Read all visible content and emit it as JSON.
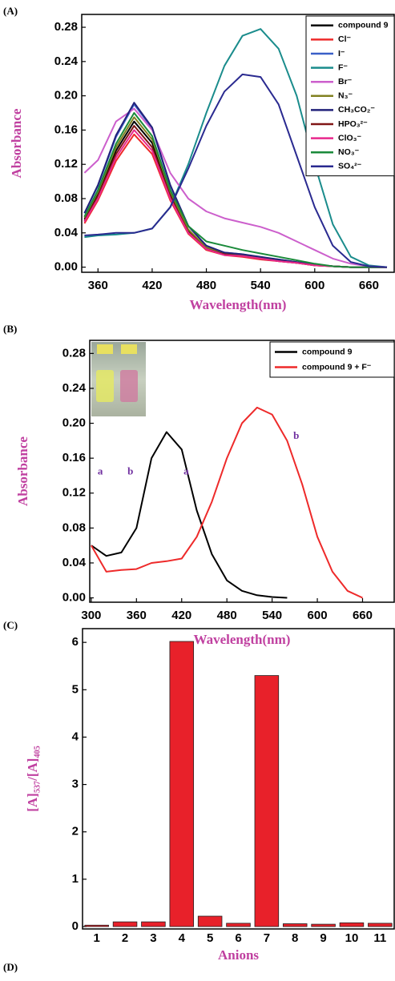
{
  "chart_data": [
    {
      "type": "line",
      "panel_label": "(A)",
      "x_label": "Wavelength(nm)",
      "y_label": "Absorbance",
      "xlim": [
        342,
        688
      ],
      "ylim": [
        -0.006,
        0.295
      ],
      "xticks": [
        360,
        420,
        480,
        540,
        600,
        660
      ],
      "yticks": [
        {
          "value": 0,
          "label": "0.00"
        },
        {
          "value": 0.04,
          "label": "0.04"
        },
        {
          "value": 0.08,
          "label": "0.08"
        },
        {
          "value": 0.12,
          "label": "0.12"
        },
        {
          "value": 0.16,
          "label": "0.16"
        },
        {
          "value": 0.2,
          "label": "0.20"
        },
        {
          "value": 0.24,
          "label": "0.24"
        },
        {
          "value": 0.28,
          "label": "0.28"
        }
      ],
      "legend": "upper right",
      "x": [
        345,
        360,
        380,
        400,
        420,
        440,
        460,
        480,
        500,
        520,
        540,
        560,
        580,
        600,
        620,
        640,
        660,
        680
      ],
      "series": [
        {
          "name": "compound 9",
          "color": "#000000",
          "values": [
            0.056,
            0.085,
            0.136,
            0.17,
            0.145,
            0.085,
            0.043,
            0.022,
            0.015,
            0.014,
            0.01,
            0.008,
            0.005,
            0.003,
            0.001,
            0,
            0,
            0
          ]
        },
        {
          "name": "Cl⁻",
          "color": "#ee2a2a",
          "values": [
            0.051,
            0.078,
            0.124,
            0.155,
            0.132,
            0.078,
            0.039,
            0.02,
            0.014,
            0.012,
            0.009,
            0.007,
            0.005,
            0.002,
            0.001,
            0,
            0,
            0
          ]
        },
        {
          "name": "I⁻",
          "color": "#3a5fc8",
          "values": [
            0.063,
            0.095,
            0.152,
            0.19,
            0.162,
            0.095,
            0.048,
            0.025,
            0.017,
            0.015,
            0.011,
            0.009,
            0.006,
            0.003,
            0.001,
            0,
            0,
            0
          ]
        },
        {
          "name": "F⁻",
          "color": "#1a8c8c",
          "values": [
            0.035,
            0.037,
            0.038,
            0.04,
            0.045,
            0.07,
            0.12,
            0.18,
            0.235,
            0.27,
            0.278,
            0.255,
            0.2,
            0.12,
            0.05,
            0.012,
            0.002,
            0
          ]
        },
        {
          "name": "Br⁻",
          "color": "#cc5fcc",
          "values": [
            0.11,
            0.125,
            0.17,
            0.185,
            0.16,
            0.11,
            0.08,
            0.065,
            0.057,
            0.052,
            0.047,
            0.04,
            0.03,
            0.02,
            0.01,
            0.004,
            0.001,
            0
          ]
        },
        {
          "name": "N₃⁻",
          "color": "#808020",
          "values": [
            0.058,
            0.088,
            0.14,
            0.175,
            0.149,
            0.088,
            0.044,
            0.023,
            0.016,
            0.014,
            0.011,
            0.008,
            0.005,
            0.003,
            0.001,
            0,
            0,
            0
          ]
        },
        {
          "name": "CH₃CO₂⁻",
          "color": "#22227a",
          "values": [
            0.063,
            0.096,
            0.154,
            0.192,
            0.163,
            0.096,
            0.048,
            0.025,
            0.017,
            0.015,
            0.012,
            0.009,
            0.006,
            0.003,
            0.001,
            0,
            0,
            0
          ]
        },
        {
          "name": "HPO₃²⁻",
          "color": "#801515",
          "values": [
            0.054,
            0.083,
            0.132,
            0.165,
            0.14,
            0.083,
            0.041,
            0.021,
            0.015,
            0.013,
            0.01,
            0.007,
            0.005,
            0.002,
            0.001,
            0,
            0,
            0
          ]
        },
        {
          "name": "ClO₃⁻",
          "color": "#e8288c",
          "values": [
            0.053,
            0.08,
            0.128,
            0.16,
            0.136,
            0.08,
            0.04,
            0.021,
            0.014,
            0.013,
            0.01,
            0.007,
            0.005,
            0.002,
            0.001,
            0,
            0,
            0
          ]
        },
        {
          "name": "NO₃⁻",
          "color": "#1a8a3a",
          "values": [
            0.059,
            0.09,
            0.144,
            0.18,
            0.153,
            0.09,
            0.048,
            0.03,
            0.025,
            0.02,
            0.016,
            0.012,
            0.008,
            0.004,
            0.001,
            0,
            0,
            0
          ]
        },
        {
          "name": "SO₄²⁻",
          "color": "#2a2a90",
          "values": [
            0.037,
            0.038,
            0.04,
            0.04,
            0.045,
            0.07,
            0.115,
            0.165,
            0.205,
            0.225,
            0.222,
            0.19,
            0.13,
            0.07,
            0.025,
            0.006,
            0.001,
            0
          ]
        }
      ]
    },
    {
      "type": "line",
      "panel_label": "(B)",
      "x_label": "Wavelength(nm)",
      "y_label": "Absorbance",
      "xlim": [
        298,
        702
      ],
      "ylim": [
        -0.005,
        0.295
      ],
      "xticks": [
        300,
        360,
        420,
        480,
        540,
        600,
        660
      ],
      "yticks": [
        {
          "value": 0,
          "label": "0.00"
        },
        {
          "value": 0.04,
          "label": "0.04"
        },
        {
          "value": 0.08,
          "label": "0.08"
        },
        {
          "value": 0.12,
          "label": "0.12"
        },
        {
          "value": 0.16,
          "label": "0.16"
        },
        {
          "value": 0.2,
          "label": "0.20"
        },
        {
          "value": 0.24,
          "label": "0.24"
        },
        {
          "value": 0.28,
          "label": "0.28"
        }
      ],
      "legend": "upper right",
      "x": [
        300,
        320,
        340,
        360,
        380,
        400,
        420,
        440,
        460,
        480,
        500,
        520,
        540,
        560,
        580,
        600,
        620,
        640,
        660
      ],
      "series": [
        {
          "name": "compound 9",
          "color": "#000000",
          "values": [
            0.06,
            0.048,
            0.052,
            0.08,
            0.16,
            0.19,
            0.17,
            0.1,
            0.05,
            0.02,
            0.008,
            0.003,
            0.001,
            0,
            null,
            null,
            null,
            null,
            null
          ]
        },
        {
          "name": "compound 9 + F⁻",
          "color": "#ee2a2a",
          "values": [
            0.06,
            0.03,
            0.032,
            0.033,
            0.04,
            0.042,
            0.045,
            0.07,
            0.11,
            0.16,
            0.2,
            0.218,
            0.21,
            0.18,
            0.13,
            0.07,
            0.03,
            0.008,
            0
          ]
        }
      ],
      "annotations": [
        {
          "text": "a",
          "x": 312,
          "y": 0.144
        },
        {
          "text": "b",
          "x": 352,
          "y": 0.144
        },
        {
          "text": "a",
          "x": 426,
          "y": 0.144
        },
        {
          "text": "b",
          "x": 572,
          "y": 0.185
        }
      ]
    },
    {
      "type": "bar",
      "panel_label": "(C)",
      "x_label": "Anions",
      "y_label": "[A]₅₃₇/[A]₄₀₅",
      "ylim": [
        -0.05,
        6.29
      ],
      "yticks": [
        0,
        1,
        2,
        3,
        4,
        5,
        6
      ],
      "color": "#e8212a",
      "categories": [
        "1",
        "2",
        "3",
        "4",
        "5",
        "6",
        "7",
        "8",
        "9",
        "10",
        "11"
      ],
      "values": [
        0.03,
        0.1,
        0.1,
        6.02,
        0.22,
        0.07,
        5.3,
        0.06,
        0.05,
        0.08,
        0.07
      ]
    }
  ],
  "figure": {
    "next_panel_label": "(D)"
  }
}
